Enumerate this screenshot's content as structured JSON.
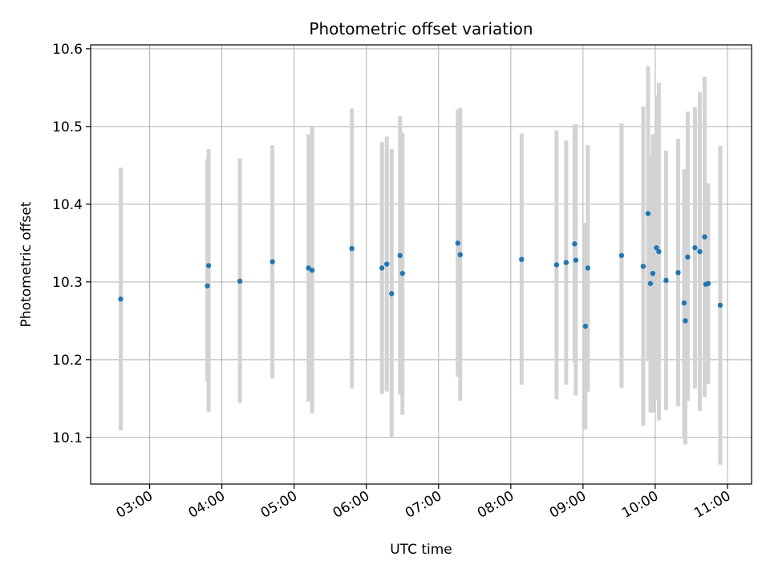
{
  "chart_data": {
    "type": "scatter",
    "title": "Photometric offset variation",
    "xlabel": "UTC time",
    "ylabel": "Photometric offset",
    "x_ticks": [
      "03:00",
      "04:00",
      "05:00",
      "06:00",
      "07:00",
      "08:00",
      "09:00",
      "10:00",
      "11:00"
    ],
    "y_ticks": [
      "10.1",
      "10.2",
      "10.3",
      "10.4",
      "10.5",
      "10.6"
    ],
    "xlim": [
      "02:11",
      "11:20"
    ],
    "ylim": [
      10.04,
      10.605
    ],
    "grid": true,
    "colors": {
      "point": "#1f77b4",
      "errorbar": "#d3d3d3",
      "grid": "#b0b0b0"
    },
    "points": [
      {
        "time": "02:36",
        "y": 10.278,
        "lo": 10.109,
        "hi": 10.447
      },
      {
        "time": "03:48",
        "y": 10.295,
        "lo": 10.172,
        "hi": 10.458
      },
      {
        "time": "03:49",
        "y": 10.321,
        "lo": 10.133,
        "hi": 10.471
      },
      {
        "time": "04:15",
        "y": 10.301,
        "lo": 10.144,
        "hi": 10.459
      },
      {
        "time": "04:42",
        "y": 10.326,
        "lo": 10.176,
        "hi": 10.476
      },
      {
        "time": "05:12",
        "y": 10.318,
        "lo": 10.146,
        "hi": 10.49
      },
      {
        "time": "05:15",
        "y": 10.315,
        "lo": 10.131,
        "hi": 10.499
      },
      {
        "time": "05:48",
        "y": 10.343,
        "lo": 10.163,
        "hi": 10.523
      },
      {
        "time": "06:13",
        "y": 10.318,
        "lo": 10.156,
        "hi": 10.48
      },
      {
        "time": "06:17",
        "y": 10.323,
        "lo": 10.159,
        "hi": 10.487
      },
      {
        "time": "06:21",
        "y": 10.285,
        "lo": 10.099,
        "hi": 10.471
      },
      {
        "time": "06:28",
        "y": 10.334,
        "lo": 10.155,
        "hi": 10.513
      },
      {
        "time": "06:30",
        "y": 10.311,
        "lo": 10.129,
        "hi": 10.492
      },
      {
        "time": "07:16",
        "y": 10.35,
        "lo": 10.178,
        "hi": 10.522
      },
      {
        "time": "07:18",
        "y": 10.335,
        "lo": 10.147,
        "hi": 10.524
      },
      {
        "time": "08:09",
        "y": 10.329,
        "lo": 10.168,
        "hi": 10.491
      },
      {
        "time": "08:38",
        "y": 10.322,
        "lo": 10.149,
        "hi": 10.495
      },
      {
        "time": "08:46",
        "y": 10.325,
        "lo": 10.168,
        "hi": 10.482
      },
      {
        "time": "08:53",
        "y": 10.349,
        "lo": 10.196,
        "hi": 10.502
      },
      {
        "time": "08:54",
        "y": 10.328,
        "lo": 10.154,
        "hi": 10.503
      },
      {
        "time": "09:02",
        "y": 10.243,
        "lo": 10.11,
        "hi": 10.376
      },
      {
        "time": "09:04",
        "y": 10.318,
        "lo": 10.159,
        "hi": 10.476
      },
      {
        "time": "09:32",
        "y": 10.334,
        "lo": 10.164,
        "hi": 10.504
      },
      {
        "time": "09:50",
        "y": 10.32,
        "lo": 10.115,
        "hi": 10.526
      },
      {
        "time": "09:54",
        "y": 10.388,
        "lo": 10.198,
        "hi": 10.578
      },
      {
        "time": "09:56",
        "y": 10.298,
        "lo": 10.132,
        "hi": 10.464
      },
      {
        "time": "09:58",
        "y": 10.311,
        "lo": 10.132,
        "hi": 10.49
      },
      {
        "time": "10:01",
        "y": 10.344,
        "lo": 10.148,
        "hi": 10.54
      },
      {
        "time": "10:03",
        "y": 10.339,
        "lo": 10.122,
        "hi": 10.556
      },
      {
        "time": "10:09",
        "y": 10.302,
        "lo": 10.135,
        "hi": 10.469
      },
      {
        "time": "10:19",
        "y": 10.312,
        "lo": 10.14,
        "hi": 10.484
      },
      {
        "time": "10:24",
        "y": 10.273,
        "lo": 10.101,
        "hi": 10.445
      },
      {
        "time": "10:25",
        "y": 10.25,
        "lo": 10.091,
        "hi": 10.409
      },
      {
        "time": "10:27",
        "y": 10.332,
        "lo": 10.147,
        "hi": 10.519
      },
      {
        "time": "10:33",
        "y": 10.344,
        "lo": 10.163,
        "hi": 10.525
      },
      {
        "time": "10:37",
        "y": 10.339,
        "lo": 10.134,
        "hi": 10.544
      },
      {
        "time": "10:41",
        "y": 10.358,
        "lo": 10.152,
        "hi": 10.564
      },
      {
        "time": "10:42",
        "y": 10.297,
        "lo": 10.168,
        "hi": 10.426
      },
      {
        "time": "10:44",
        "y": 10.298,
        "lo": 10.169,
        "hi": 10.427
      },
      {
        "time": "10:54",
        "y": 10.27,
        "lo": 10.065,
        "hi": 10.475
      }
    ]
  }
}
